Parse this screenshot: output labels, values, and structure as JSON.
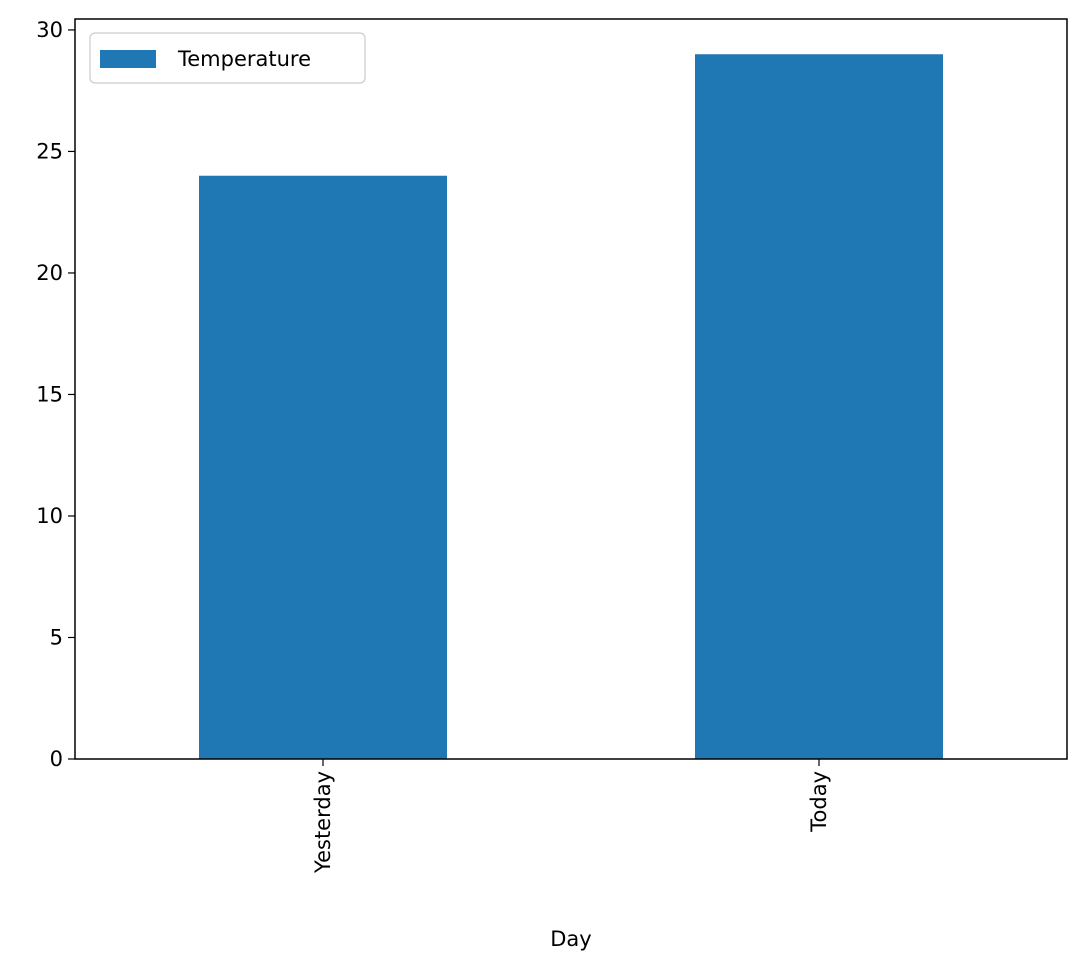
{
  "chart_data": {
    "type": "bar",
    "categories": [
      "Yesterday",
      "Today"
    ],
    "series": [
      {
        "name": "Temperature",
        "values": [
          24,
          29
        ],
        "color": "#1f77b4"
      }
    ],
    "xlabel": "Day",
    "ylabel": "",
    "ylim": [
      0,
      30.45
    ],
    "yticks": [
      0,
      5,
      10,
      15,
      20,
      25,
      30
    ],
    "xtick_rotation": 90,
    "grid": false,
    "legend_position": "top-left"
  }
}
